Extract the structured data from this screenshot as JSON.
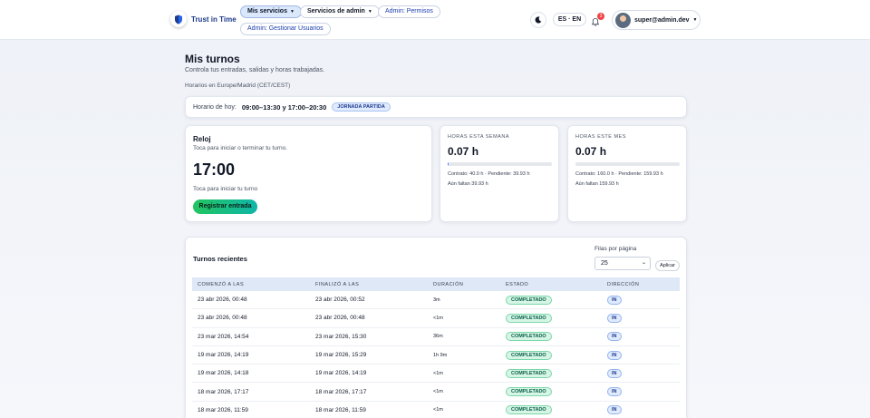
{
  "brand": {
    "name": "Trust in Time"
  },
  "nav": {
    "items": [
      {
        "label": "Mis servicios"
      },
      {
        "label": "Servicios de admin"
      },
      {
        "label": "Admin: Permisos"
      },
      {
        "label": "Admin: Gestionar Usuarios"
      }
    ],
    "lang": "ES · EN",
    "notification_count": "3",
    "user": "super@admin.dev"
  },
  "page": {
    "title": "Mis turnos",
    "subtitle": "Controla tus entradas, salidas y horas trabajadas.",
    "timezone": "Horarios en Europe/Madrid (CET/CEST)"
  },
  "schedule": {
    "label": "Horario de hoy:",
    "value": "09:00–13:30 y 17:00–20:30",
    "badge": "JORNADA PARTIDA"
  },
  "clock": {
    "title": "Reloj",
    "subtitle": "Toca para iniciar o terminar tu turno.",
    "time": "17:00",
    "hint": "Toca para iniciar tu turno",
    "button": "Registrar entrada"
  },
  "stats": [
    {
      "label": "HORAS ESTA SEMANA",
      "value": "0.07 h",
      "progress": 0.002,
      "line1": "Contrato: 40.0 h · Pendiente: 39.93 h",
      "line2": "Aún faltan 39.93 h"
    },
    {
      "label": "HORAS ESTE MES",
      "value": "0.07 h",
      "progress": 0.0004,
      "line1": "Contrato: 160.0 h · Pendiente: 159.93 h",
      "line2": "Aún faltan 159.93 h"
    }
  ],
  "recent": {
    "title": "Turnos recientes",
    "rows_label": "Filas por página",
    "rows_value": "25",
    "apply": "Aplicar",
    "columns": [
      "COMENZÓ A LAS",
      "FINALIZÓ A LAS",
      "DURACIÓN",
      "ESTADO",
      "DIRECCIÓN"
    ],
    "rows": [
      {
        "start": "23 abr 2026, 00:48",
        "end": "23 abr 2026, 00:52",
        "duration": "3m",
        "status": "COMPLETADO",
        "direction": "IN"
      },
      {
        "start": "23 abr 2026, 00:48",
        "end": "23 abr 2026, 00:48",
        "duration": "<1m",
        "status": "COMPLETADO",
        "direction": "IN"
      },
      {
        "start": "23 mar 2026, 14:54",
        "end": "23 mar 2026, 15:30",
        "duration": "36m",
        "status": "COMPLETADO",
        "direction": "IN"
      },
      {
        "start": "19 mar 2026, 14:19",
        "end": "19 mar 2026, 15:29",
        "duration": "1h 9m",
        "status": "COMPLETADO",
        "direction": "IN"
      },
      {
        "start": "19 mar 2026, 14:18",
        "end": "19 mar 2026, 14:19",
        "duration": "<1m",
        "status": "COMPLETADO",
        "direction": "IN"
      },
      {
        "start": "18 mar 2026, 17:17",
        "end": "18 mar 2026, 17:17",
        "duration": "<1m",
        "status": "COMPLETADO",
        "direction": "IN"
      },
      {
        "start": "18 mar 2026, 11:59",
        "end": "18 mar 2026, 11:59",
        "duration": "<1m",
        "status": "COMPLETADO",
        "direction": "IN"
      }
    ]
  }
}
